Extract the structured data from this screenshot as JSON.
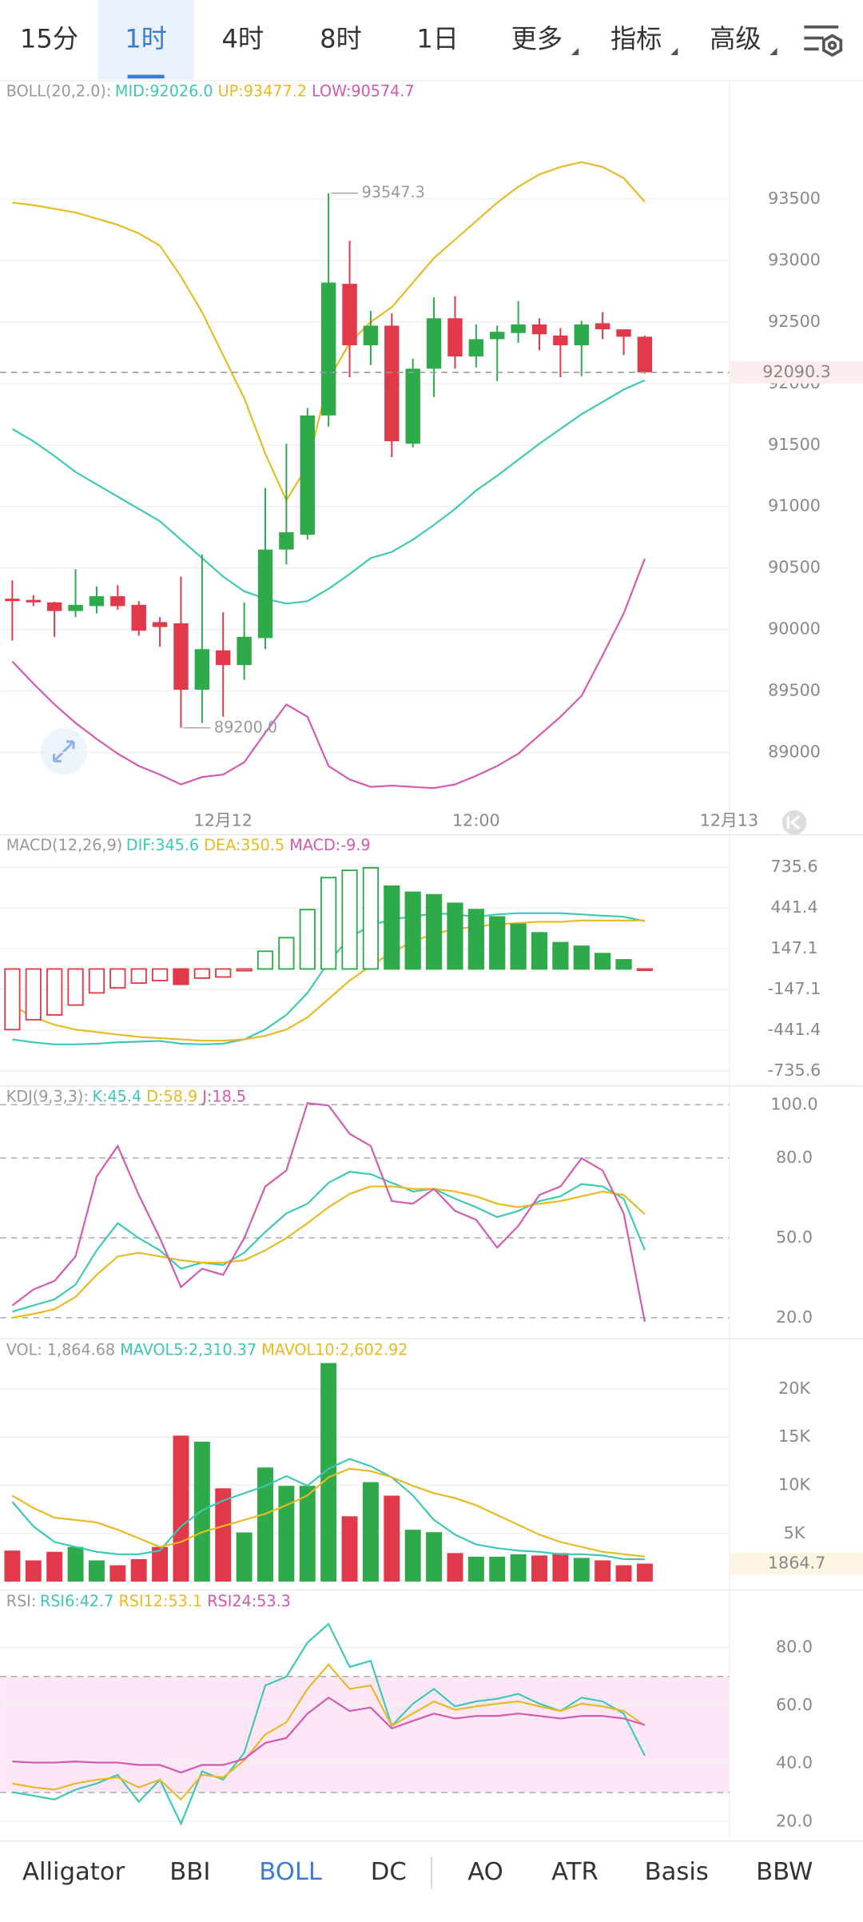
{
  "tabs": [
    "15分",
    "1时",
    "4时",
    "8时",
    "1日",
    "更多",
    "指标",
    "高级"
  ],
  "indicators": [
    "Alligator",
    "BBI",
    "BOLL",
    "DC",
    "AO",
    "ATR",
    "Basis",
    "BBW"
  ],
  "chart_data": [
    {
      "type": "candlestick",
      "title": "BOLL(20,2.0):",
      "up_color": "#2eaa4a",
      "down_color": "#e03a4a",
      "open": [
        90250,
        90240,
        90220,
        90150,
        90190,
        90270,
        90200,
        90060,
        90050,
        89510,
        89830,
        89710,
        89930,
        90650,
        90770,
        91740,
        92810,
        92310,
        92470,
        91510,
        92120,
        92530,
        92220,
        92360,
        92410,
        92480,
        92390,
        92310,
        92490,
        92440,
        92380
      ],
      "high": [
        90400,
        90280,
        90225,
        90490,
        90350,
        90360,
        90230,
        90100,
        90430,
        90610,
        90140,
        90220,
        91150,
        91510,
        91800,
        93547.3,
        93160,
        92590,
        92570,
        92200,
        92700,
        92710,
        92480,
        92470,
        92670,
        92530,
        92450,
        92510,
        92580,
        92440,
        92390
      ],
      "low": [
        89910,
        90190,
        89940,
        90100,
        90130,
        90160,
        89950,
        89860,
        89200,
        89240,
        89290,
        89590,
        89840,
        90530,
        90730,
        91650,
        92050,
        92150,
        91400,
        91480,
        91890,
        92120,
        92130,
        92020,
        92330,
        92270,
        92050,
        92060,
        92360,
        92230,
        92080
      ],
      "close": [
        90230,
        90220,
        90150,
        90200,
        90270,
        90190,
        89990,
        90020,
        89510,
        89840,
        89710,
        89940,
        90650,
        90790,
        91740,
        92820,
        92310,
        92470,
        91530,
        92120,
        92530,
        92220,
        92360,
        92420,
        92480,
        92400,
        92310,
        92480,
        92440,
        92380,
        92090.3
      ],
      "series": [
        {
          "name": "MID:92026.0",
          "color": "#3cc8b4",
          "type": "line",
          "values": [
            91630,
            91530,
            91410,
            91280,
            91180,
            91080,
            90980,
            90880,
            90730,
            90580,
            90430,
            90310,
            90250,
            90210,
            90230,
            90330,
            90450,
            90580,
            90630,
            90730,
            90850,
            90980,
            91130,
            91250,
            91380,
            91510,
            91630,
            91750,
            91850,
            91950,
            92026
          ]
        },
        {
          "name": "UP:93477.2",
          "color": "#e8b923",
          "type": "line",
          "values": [
            93470,
            93450,
            93420,
            93390,
            93340,
            93290,
            93220,
            93120,
            92870,
            92580,
            92230,
            91880,
            91430,
            91050,
            91330,
            92030,
            92330,
            92500,
            92620,
            92820,
            93020,
            93170,
            93320,
            93470,
            93600,
            93700,
            93760,
            93800,
            93760,
            93670,
            93477.2
          ]
        },
        {
          "name": "LOW:90574.7",
          "color": "#d458b0",
          "type": "line",
          "values": [
            89740,
            89560,
            89390,
            89240,
            89110,
            88990,
            88890,
            88820,
            88740,
            88800,
            88820,
            88920,
            89160,
            89390,
            89290,
            88890,
            88780,
            88720,
            88730,
            88720,
            88710,
            88740,
            88810,
            88890,
            88990,
            89140,
            89290,
            89460,
            89790,
            90130,
            90574.7
          ]
        }
      ],
      "annotations": [
        {
          "value": 93547.3,
          "label": "93547.3"
        },
        {
          "value": 89200,
          "label": "89200.0"
        }
      ],
      "ylim": [
        88590,
        94440
      ],
      "yticks": [
        89000,
        89500,
        90000,
        90500,
        91000,
        91500,
        92000,
        92500,
        93000,
        93500
      ],
      "grid": true,
      "xlim": [
        -0.58,
        34.01
      ],
      "xticks": [
        {
          "value": 10,
          "label": "12月12"
        },
        {
          "value": 22,
          "label": "12:00"
        },
        {
          "value": 34,
          "label": "12月13"
        }
      ]
    },
    {
      "type": "line",
      "title": "MACD(12,26,9)",
      "up_color": "#2eaa4a",
      "down_color": "#e03a4a",
      "series": [
        {
          "name": "DIF:345.6",
          "color": "#3cc8b4",
          "type": "line",
          "values": [
            -509,
            -530,
            -545,
            -545,
            -540,
            -530,
            -525,
            -520,
            -540,
            -545,
            -540,
            -509,
            -437,
            -332,
            -173,
            49,
            226,
            315,
            359,
            377,
            403,
            394,
            377,
            394,
            403,
            403,
            403,
            394,
            385,
            377,
            345.6
          ]
        },
        {
          "name": "DEA:350.5",
          "color": "#e8b923",
          "type": "line",
          "values": [
            -261,
            -350,
            -403,
            -438,
            -456,
            -474,
            -491,
            -500,
            -509,
            -518,
            -518,
            -509,
            -483,
            -438,
            -350,
            -217,
            -84,
            22,
            120,
            199,
            253,
            288,
            306,
            323,
            332,
            341,
            341,
            350,
            350,
            350,
            350.5
          ]
        },
        {
          "name": "MACD:-9.9",
          "color": "#d458b0",
          "type": "histogram",
          "values": [
            -438,
            -367,
            -332,
            -261,
            -173,
            -137,
            -102,
            -84,
            -111,
            -66,
            -58,
            -13,
            128,
            226,
            429,
            660,
            713,
            731,
            598,
            554,
            536,
            474,
            429,
            376,
            323,
            261,
            190,
            164,
            111,
            66,
            -9.9
          ]
        }
      ],
      "ylim": [
        -837,
        952
      ],
      "yticks": [
        -735.6,
        -441.4,
        -147.1,
        147.1,
        441.4,
        735.6
      ],
      "grid": true,
      "xlim": [
        -0.58,
        34.01
      ]
    },
    {
      "type": "line",
      "title": "KDJ(9,3,3):",
      "series": [
        {
          "name": "K:45.4",
          "color": "#3cc8b4",
          "type": "line",
          "values": [
            22.3,
            24.6,
            26.9,
            32.4,
            45.3,
            55.5,
            49.9,
            45.3,
            38.4,
            40.7,
            39.8,
            44.4,
            52.2,
            59.2,
            62.8,
            70.7,
            74.8,
            73.9,
            70.7,
            67.4,
            68.4,
            64.7,
            61.5,
            57.8,
            60.1,
            63.8,
            65.6,
            70.2,
            69.3,
            64.7,
            45.4
          ]
        },
        {
          "name": "D:58.9",
          "color": "#e8b923",
          "type": "line",
          "values": [
            20,
            21.4,
            23.2,
            27.8,
            36.1,
            43.0,
            44.4,
            43.0,
            41.6,
            40.7,
            40.7,
            41.6,
            45.3,
            49.9,
            55.5,
            61.5,
            66.5,
            69.3,
            69.3,
            68.4,
            68.4,
            67.4,
            65.6,
            62.8,
            61.5,
            62.8,
            63.8,
            65.6,
            67.4,
            66.1,
            58.9
          ]
        },
        {
          "name": "J:18.5",
          "color": "#d458b0",
          "type": "line",
          "values": [
            24.6,
            30.6,
            33.8,
            43.0,
            73.0,
            84.5,
            66.1,
            49.9,
            31.5,
            38.4,
            36.1,
            49.9,
            69.3,
            75.3,
            100.6,
            99.7,
            89.1,
            84.5,
            63.8,
            62.8,
            68.4,
            60.1,
            56.8,
            46.3,
            54.5,
            66.1,
            69.3,
            79.9,
            75.3,
            59.2,
            18.5
          ]
        }
      ],
      "ylim": [
        13.1,
        106.1
      ],
      "yticks": [
        {
          "value": 20,
          "label": "20.0"
        },
        {
          "value": 50,
          "label": "50.0"
        },
        {
          "value": 80,
          "label": "80.0"
        },
        {
          "value": 100,
          "label": "100.0"
        }
      ],
      "grid": true,
      "grid_style": "dashed",
      "xlim": [
        -0.58,
        34.01
      ]
    },
    {
      "type": "line",
      "up_color": "#2eaa4a",
      "down_color": "#e03a4a",
      "series": [
        {
          "name": "VOL: 1,864.68",
          "color": "#999999",
          "type": "bar",
          "values": [
            3219,
            2201,
            3092,
            3600,
            2201,
            1692,
            2328,
            3600,
            15155,
            14519,
            9684,
            5104,
            11847,
            9939,
            9939,
            22684,
            6781,
            10321,
            8921,
            5381,
            5127,
            2964,
            2583,
            2583,
            2837,
            2710,
            2964,
            2455,
            2201,
            1692,
            1864.68
          ]
        },
        {
          "name": "MAVOL5:2,310.37",
          "color": "#3cc8b4",
          "type": "line",
          "values": [
            8280,
            5734,
            4109,
            3600,
            3092,
            2837,
            2837,
            3219,
            5734,
            7388,
            8406,
            9170,
            9939,
            10954,
            9939,
            11720,
            12738,
            11975,
            10830,
            8944,
            6400,
            4873,
            3855,
            3474,
            3219,
            3092,
            2837,
            2837,
            2710,
            2328,
            2310.37
          ]
        },
        {
          "name": "MAVOL10:2,602.92",
          "color": "#e8b923",
          "type": "line",
          "values": [
            8921,
            7650,
            6634,
            6400,
            6144,
            5381,
            4491,
            3600,
            4109,
            5127,
            5762,
            6400,
            7036,
            7926,
            8944,
            10830,
            11720,
            11466,
            10830,
            9939,
            9175,
            8666,
            7926,
            6908,
            5890,
            4873,
            4109,
            3600,
            3092,
            2837,
            2602.92
          ]
        }
      ],
      "current_label": "1864.7",
      "ylim": [
        -600,
        24850
      ],
      "yticks": [
        {
          "value": 5000,
          "label": "5K"
        },
        {
          "value": 10000,
          "label": "10K"
        },
        {
          "value": 15000,
          "label": "15K"
        },
        {
          "value": 20000,
          "label": "20K"
        }
      ],
      "grid": true,
      "xlim": [
        -0.58,
        34.01
      ]
    },
    {
      "type": "line",
      "title": "RSI:",
      "series": [
        {
          "name": "RSI6:42.7",
          "color": "#3cc8b4",
          "type": "line",
          "values": [
            30.1,
            28.9,
            27.6,
            31.0,
            33.1,
            36.1,
            26.8,
            34.4,
            19.2,
            37.3,
            34.4,
            43.7,
            66.9,
            69.9,
            81.7,
            88.1,
            73.3,
            75.4,
            53.0,
            60.6,
            65.7,
            59.7,
            61.4,
            62.3,
            64.0,
            60.6,
            58.1,
            62.7,
            61.4,
            57.2,
            42.7
          ]
        },
        {
          "name": "RSI12:53.1",
          "color": "#e8b923",
          "type": "line",
          "values": [
            33.1,
            31.8,
            31.0,
            33.1,
            34.4,
            35.2,
            31.8,
            34.4,
            27.6,
            36.1,
            35.2,
            41.1,
            50.0,
            54.2,
            65.7,
            74.1,
            65.7,
            66.9,
            53.0,
            57.2,
            61.4,
            58.5,
            59.7,
            60.6,
            61.4,
            59.7,
            58.1,
            60.6,
            59.7,
            58.1,
            53.1
          ]
        },
        {
          "name": "RSI24:53.3",
          "color": "#d458b0",
          "type": "line",
          "values": [
            40.7,
            40.3,
            40.3,
            40.7,
            40.3,
            40.3,
            39.5,
            39.5,
            36.9,
            39.5,
            39.5,
            41.6,
            47.1,
            48.8,
            57.2,
            62.7,
            58.1,
            59.3,
            52.1,
            54.7,
            57.2,
            55.5,
            56.4,
            56.4,
            57.2,
            56.4,
            55.5,
            56.4,
            56.4,
            55.5,
            53.3
          ]
        }
      ],
      "band": [
        30,
        70
      ],
      "ylim": [
        14.1,
        98.6
      ],
      "yticks": [
        {
          "value": 20,
          "label": "20.0"
        },
        {
          "value": 40,
          "label": "40.0"
        },
        {
          "value": 60,
          "label": "60.0"
        },
        {
          "value": 80,
          "label": "80.0"
        }
      ],
      "grid": true,
      "xlim": [
        -0.58,
        34.01
      ]
    }
  ]
}
